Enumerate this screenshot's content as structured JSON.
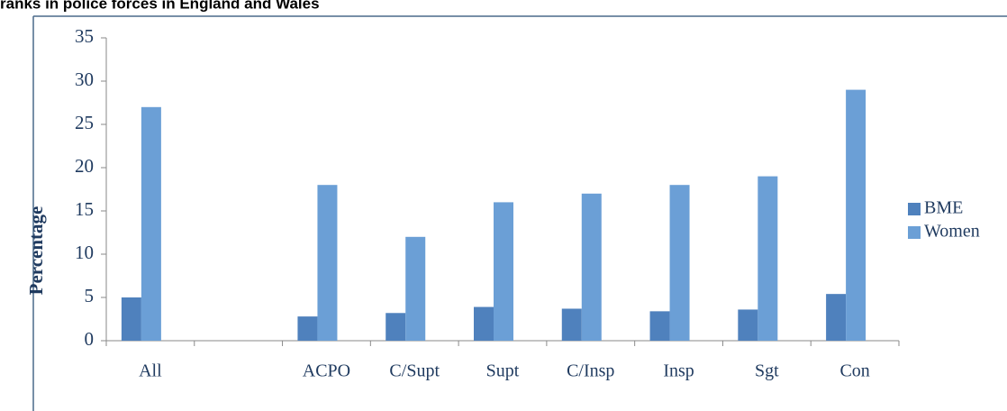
{
  "chart_data": {
    "type": "bar",
    "title": "ranks in police forces in England and Wales",
    "y_label": "Percentage",
    "categories": [
      "All",
      null,
      "ACPO",
      "C/Supt",
      "Supt",
      "C/Insp",
      "Insp",
      "Sgt",
      "Con"
    ],
    "series": [
      {
        "name": "BME",
        "color": "#4f81bd",
        "values": [
          5,
          null,
          2.8,
          3.2,
          3.9,
          3.7,
          3.4,
          3.6,
          5.4
        ]
      },
      {
        "name": "Women",
        "color": "#6b9fd6",
        "values": [
          27,
          null,
          18,
          12,
          16,
          17,
          18,
          19,
          29
        ]
      }
    ],
    "ylim": [
      0,
      35
    ],
    "yticks": [
      0,
      5,
      10,
      15,
      20,
      25,
      30,
      35
    ],
    "grid": false,
    "legend": "right"
  }
}
